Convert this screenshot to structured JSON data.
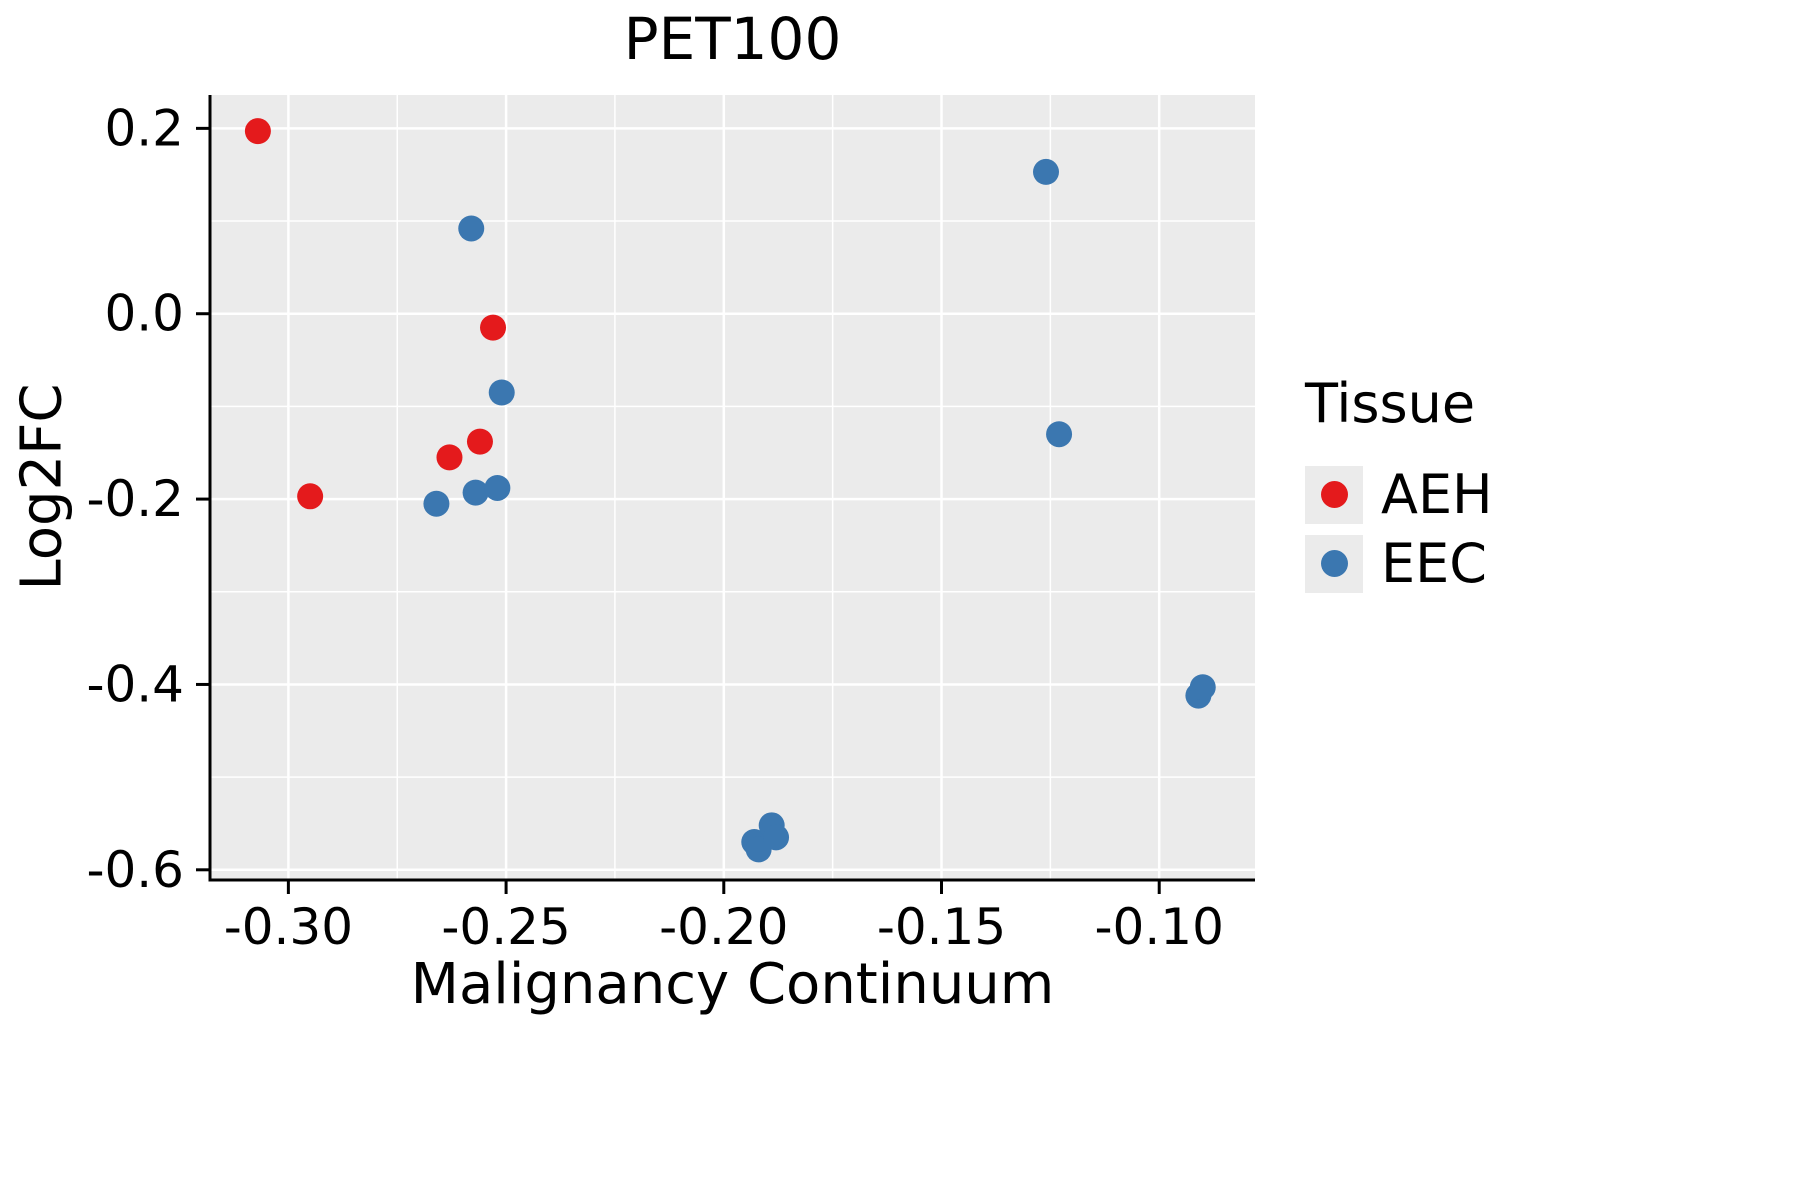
{
  "colors": {
    "background": "#FFFFFF",
    "panel_background": "#EBEBEB",
    "grid_major": "#FFFFFF",
    "grid_minor": "#FFFFFF",
    "axis_line": "#000000",
    "text": "#000000"
  },
  "chart_data": {
    "type": "scatter",
    "title": "PET100",
    "xlabel": "Malignancy Continuum",
    "ylabel": "Log2FC",
    "xlim": [
      -0.318,
      -0.078
    ],
    "ylim": [
      -0.611,
      0.236
    ],
    "xticks": [
      -0.3,
      -0.25,
      -0.2,
      -0.15,
      -0.1
    ],
    "xtick_labels": [
      "-0.30",
      "-0.25",
      "-0.20",
      "-0.15",
      "-0.10"
    ],
    "yticks": [
      0.2,
      0.0,
      -0.2,
      -0.4,
      -0.6
    ],
    "ytick_labels": [
      "0.2",
      "0.0",
      "-0.2",
      "-0.4",
      "-0.6"
    ],
    "grid": true,
    "legend": {
      "title": "Tissue",
      "position": "right"
    },
    "series": [
      {
        "name": "AEH",
        "color": "#E41A1C",
        "points": [
          [
            -0.307,
            0.197
          ],
          [
            -0.295,
            -0.197
          ],
          [
            -0.263,
            -0.155
          ],
          [
            -0.256,
            -0.138
          ],
          [
            -0.253,
            -0.015
          ]
        ]
      },
      {
        "name": "EEC",
        "color": "#3B77B0",
        "points": [
          [
            -0.258,
            0.092
          ],
          [
            -0.266,
            -0.205
          ],
          [
            -0.257,
            -0.193
          ],
          [
            -0.252,
            -0.188
          ],
          [
            -0.251,
            -0.085
          ],
          [
            -0.193,
            -0.57
          ],
          [
            -0.192,
            -0.578
          ],
          [
            -0.189,
            -0.552
          ],
          [
            -0.188,
            -0.565
          ],
          [
            -0.126,
            0.153
          ],
          [
            -0.123,
            -0.13
          ],
          [
            -0.091,
            -0.412
          ],
          [
            -0.09,
            -0.403
          ]
        ]
      }
    ]
  }
}
